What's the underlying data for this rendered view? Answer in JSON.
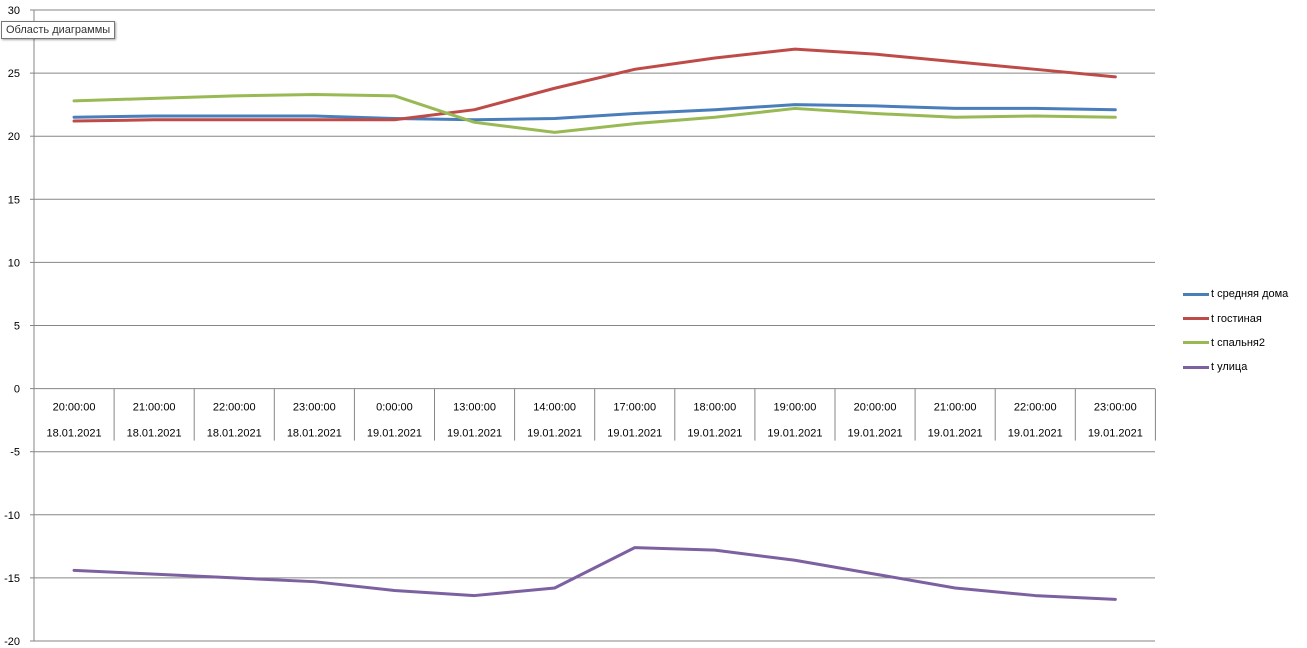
{
  "tooltip": "Область диаграммы",
  "chart_data": {
    "type": "line",
    "categories": [
      {
        "time": "20:00:00",
        "date": "18.01.2021"
      },
      {
        "time": "21:00:00",
        "date": "18.01.2021"
      },
      {
        "time": "22:00:00",
        "date": "18.01.2021"
      },
      {
        "time": "23:00:00",
        "date": "18.01.2021"
      },
      {
        "time": "0:00:00",
        "date": "19.01.2021"
      },
      {
        "time": "13:00:00",
        "date": "19.01.2021"
      },
      {
        "time": "14:00:00",
        "date": "19.01.2021"
      },
      {
        "time": "17:00:00",
        "date": "19.01.2021"
      },
      {
        "time": "18:00:00",
        "date": "19.01.2021"
      },
      {
        "time": "19:00:00",
        "date": "19.01.2021"
      },
      {
        "time": "20:00:00",
        "date": "19.01.2021"
      },
      {
        "time": "21:00:00",
        "date": "19.01.2021"
      },
      {
        "time": "22:00:00",
        "date": "19.01.2021"
      },
      {
        "time": "23:00:00",
        "date": "19.01.2021"
      }
    ],
    "ylim": [
      -20,
      30
    ],
    "yticks": [
      "30",
      "25",
      "20",
      "15",
      "10",
      "5",
      "0",
      "-5",
      "-10",
      "-15",
      "-20"
    ],
    "grid": true,
    "legend_position": "right",
    "series": [
      {
        "name": "t средняя дома",
        "color": "#4a7ebb",
        "values": [
          21.5,
          21.6,
          21.6,
          21.6,
          21.4,
          21.3,
          21.4,
          21.8,
          22.1,
          22.5,
          22.4,
          22.2,
          22.2,
          22.1
        ]
      },
      {
        "name": "t гостиная",
        "color": "#be4b48",
        "values": [
          21.2,
          21.3,
          21.3,
          21.3,
          21.3,
          22.1,
          23.8,
          25.3,
          26.2,
          26.9,
          26.5,
          25.9,
          25.3,
          24.7
        ]
      },
      {
        "name": "t спальня2",
        "color": "#98b954",
        "values": [
          22.8,
          23.0,
          23.2,
          23.3,
          23.2,
          21.1,
          20.3,
          21.0,
          21.5,
          22.2,
          21.8,
          21.5,
          21.6,
          21.5
        ]
      },
      {
        "name": "t улица",
        "color": "#7d60a0",
        "values": [
          -14.4,
          -14.7,
          -15.0,
          -15.3,
          -16.0,
          -16.4,
          -15.8,
          -12.6,
          -12.8,
          -13.6,
          -14.7,
          -15.8,
          -16.4,
          -16.7
        ]
      }
    ]
  }
}
